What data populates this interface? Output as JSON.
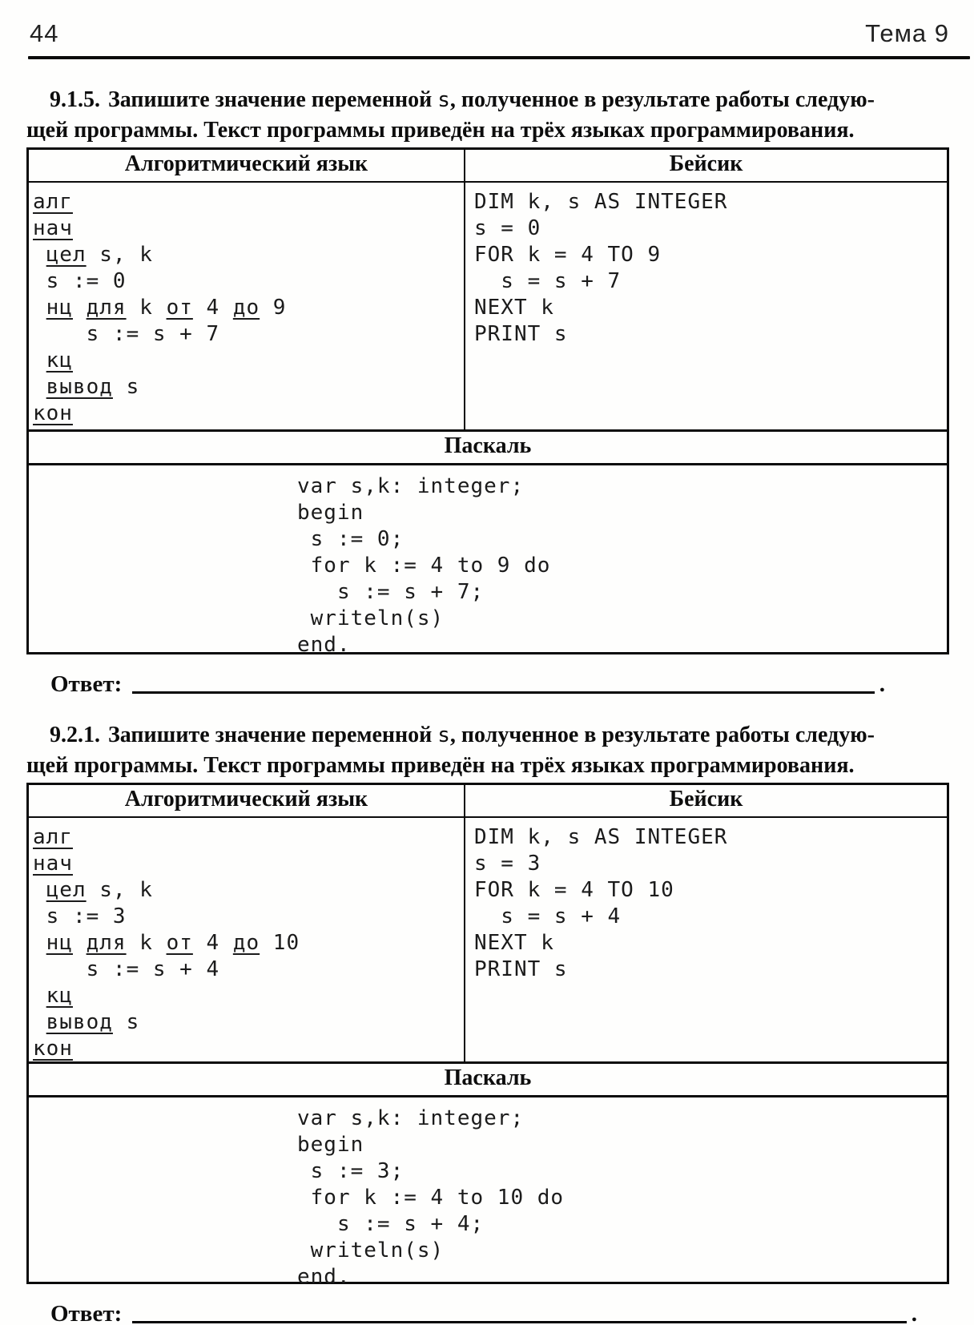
{
  "page": {
    "number": "44",
    "topic": "Тема 9"
  },
  "labels": {
    "answer": "Ответ:",
    "answer_period": ".",
    "col_algo": "Алгоритмический язык",
    "col_basic": "Бейсик",
    "col_pascal": "Паскаль"
  },
  "tasks": [
    {
      "number": "9.1.5.",
      "statement_pre": "Запишите значение переменной ",
      "statement_var": "s",
      "statement_tail": ", полученное в результате работы следую-",
      "statement_line2": "щей программы. Текст программы приведён на трёх языках программирования.",
      "algo_lines": [
        [
          [
            "алг",
            1
          ]
        ],
        [
          [
            "нач",
            1
          ]
        ],
        [
          [
            " ",
            0
          ],
          [
            "цел",
            1
          ],
          [
            " s, k",
            0
          ]
        ],
        [
          [
            " s := 0",
            0
          ]
        ],
        [
          [
            " ",
            0
          ],
          [
            "нц",
            1
          ],
          [
            " ",
            0
          ],
          [
            "для",
            1
          ],
          [
            " k ",
            0
          ],
          [
            "от",
            1
          ],
          [
            " 4 ",
            0
          ],
          [
            "до",
            1
          ],
          [
            " 9",
            0
          ]
        ],
        [
          [
            "    s := s + 7",
            0
          ]
        ],
        [
          [
            " ",
            0
          ],
          [
            "кц",
            1
          ]
        ],
        [
          [
            " ",
            0
          ],
          [
            "вывод",
            1
          ],
          [
            " s",
            0
          ]
        ],
        [
          [
            "кон",
            1
          ]
        ]
      ],
      "basic_lines": [
        "DIM k, s AS INTEGER",
        "s = 0",
        "FOR k = 4 TO 9",
        "  s = s + 7",
        "NEXT k",
        "PRINT s"
      ],
      "pascal_lines": [
        "var s,k: integer;",
        "begin",
        " s := 0;",
        " for k := 4 to 9 do",
        "   s := s + 7;",
        " writeln(s)",
        "end."
      ]
    },
    {
      "number": "9.2.1.",
      "statement_pre": "Запишите значение переменной ",
      "statement_var": "s",
      "statement_tail": ", полученное в результате работы следую-",
      "statement_line2": "щей программы. Текст программы приведён на трёх языках программирования.",
      "algo_lines": [
        [
          [
            "алг",
            1
          ]
        ],
        [
          [
            "нач",
            1
          ]
        ],
        [
          [
            " ",
            0
          ],
          [
            "цел",
            1
          ],
          [
            " s, k",
            0
          ]
        ],
        [
          [
            " s := 3",
            0
          ]
        ],
        [
          [
            " ",
            0
          ],
          [
            "нц",
            1
          ],
          [
            " ",
            0
          ],
          [
            "для",
            1
          ],
          [
            " k ",
            0
          ],
          [
            "от",
            1
          ],
          [
            " 4 ",
            0
          ],
          [
            "до",
            1
          ],
          [
            " 10",
            0
          ]
        ],
        [
          [
            "    s := s + 4",
            0
          ]
        ],
        [
          [
            " ",
            0
          ],
          [
            "кц",
            1
          ]
        ],
        [
          [
            " ",
            0
          ],
          [
            "вывод",
            1
          ],
          [
            " s",
            0
          ]
        ],
        [
          [
            "кон",
            1
          ]
        ]
      ],
      "basic_lines": [
        "DIM k, s AS INTEGER",
        "s = 3",
        "FOR k = 4 TO 10",
        "  s = s + 4",
        "NEXT k",
        "PRINT s"
      ],
      "pascal_lines": [
        "var s,k: integer;",
        "begin",
        " s := 3;",
        " for k := 4 to 10 do",
        "   s := s + 4;",
        " writeln(s)",
        "end."
      ]
    }
  ]
}
